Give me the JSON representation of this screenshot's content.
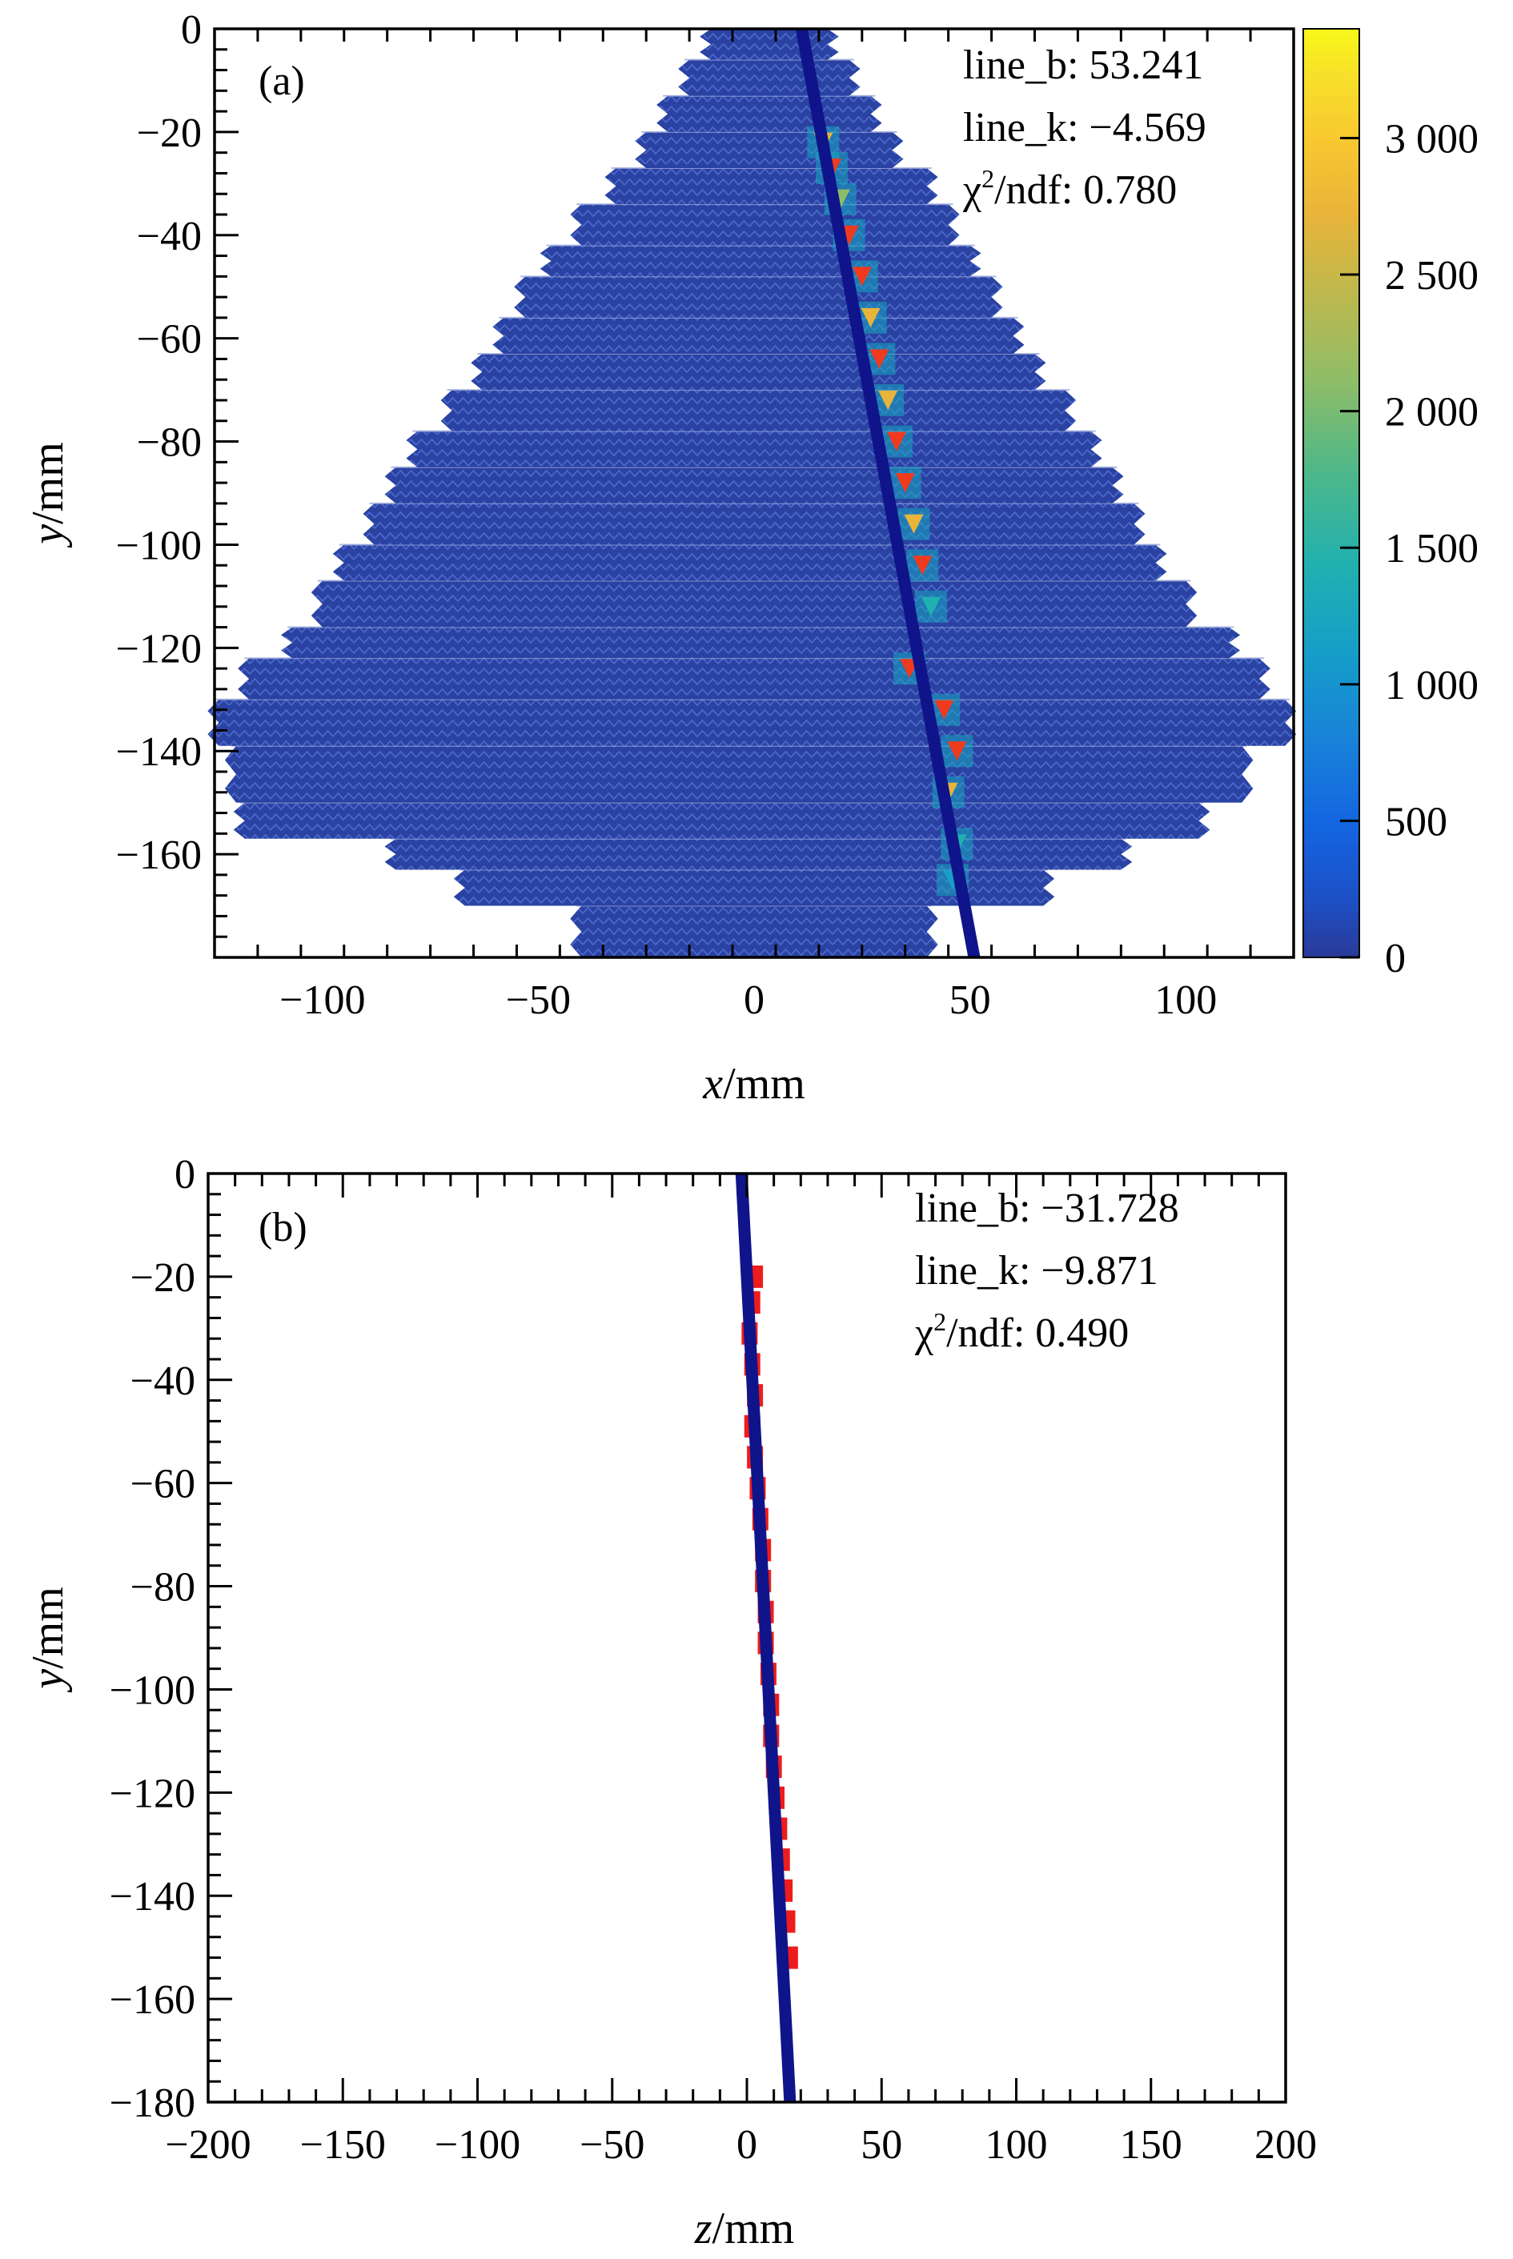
{
  "chart_data": [
    {
      "panel": "(a)",
      "type": "heatmap",
      "xlabel_var": "x",
      "xlabel_unit": "/mm",
      "ylabel_var": "y",
      "ylabel_unit": "/mm",
      "xlim": [
        -125,
        125
      ],
      "ylim": [
        -180,
        0
      ],
      "xticks": [
        -100,
        -50,
        0,
        50,
        100
      ],
      "xtick_labels": [
        "−100",
        "−50",
        "0",
        "50",
        "100"
      ],
      "yticks": [
        0,
        -20,
        -40,
        -60,
        -80,
        -100,
        -120,
        -140,
        -160
      ],
      "ytick_labels": [
        "0",
        "−20",
        "−40",
        "−60",
        "−80",
        "−100",
        "−120",
        "−140",
        "−160"
      ],
      "colorbar": {
        "range": [
          0,
          3400
        ],
        "ticks": [
          0,
          500,
          1000,
          1500,
          2000,
          2500,
          3000
        ],
        "tick_labels": [
          "0",
          "500",
          "1 000",
          "1 500",
          "2 000",
          "2 500",
          "3 000"
        ]
      },
      "detector_region": [
        {
          "y": [
            -180,
            -170
          ],
          "x": [
            -40,
            40
          ]
        },
        {
          "y": [
            -170,
            -163
          ],
          "x": [
            -67,
            67
          ]
        },
        {
          "y": [
            -163,
            -157
          ],
          "x": [
            -83,
            85
          ]
        },
        {
          "y": [
            -157,
            -150
          ],
          "x": [
            -118,
            103
          ]
        },
        {
          "y": [
            -150,
            -139
          ],
          "x": [
            -120,
            113
          ]
        },
        {
          "y": [
            -139,
            -130
          ],
          "x": [
            -124,
            123
          ]
        },
        {
          "y": [
            -130,
            -122
          ],
          "x": [
            -117,
            117
          ]
        },
        {
          "y": [
            -122,
            -116
          ],
          "x": [
            -107,
            110
          ]
        },
        {
          "y": [
            -116,
            -107
          ],
          "x": [
            -100,
            100
          ]
        },
        {
          "y": [
            -107,
            -100
          ],
          "x": [
            -95,
            93
          ]
        },
        {
          "y": [
            -100,
            -92
          ],
          "x": [
            -88,
            88
          ]
        },
        {
          "y": [
            -92,
            -85
          ],
          "x": [
            -83,
            83
          ]
        },
        {
          "y": [
            -85,
            -78
          ],
          "x": [
            -78,
            78
          ]
        },
        {
          "y": [
            -78,
            -70
          ],
          "x": [
            -70,
            72
          ]
        },
        {
          "y": [
            -70,
            -63
          ],
          "x": [
            -63,
            65
          ]
        },
        {
          "y": [
            -63,
            -56
          ],
          "x": [
            -58,
            60
          ]
        },
        {
          "y": [
            -56,
            -48
          ],
          "x": [
            -53,
            55
          ]
        },
        {
          "y": [
            -48,
            -42
          ],
          "x": [
            -47,
            50
          ]
        },
        {
          "y": [
            -42,
            -34
          ],
          "x": [
            -40,
            45
          ]
        },
        {
          "y": [
            -34,
            -27
          ],
          "x": [
            -32,
            40
          ]
        },
        {
          "y": [
            -27,
            -20
          ],
          "x": [
            -25,
            32
          ]
        },
        {
          "y": [
            -20,
            -13
          ],
          "x": [
            -20,
            27
          ]
        },
        {
          "y": [
            -13,
            -6
          ],
          "x": [
            -15,
            22
          ]
        },
        {
          "y": [
            -6,
            0
          ],
          "x": [
            -10,
            17
          ]
        }
      ],
      "hits": [
        {
          "x": 16,
          "y": -22,
          "value": 2600
        },
        {
          "x": 18,
          "y": -27,
          "value": 3200
        },
        {
          "x": 20,
          "y": -33,
          "value": 2300
        },
        {
          "x": 22,
          "y": -40,
          "value": 3300
        },
        {
          "x": 25,
          "y": -48,
          "value": 3300
        },
        {
          "x": 27,
          "y": -56,
          "value": 2800
        },
        {
          "x": 29,
          "y": -64,
          "value": 3300
        },
        {
          "x": 31,
          "y": -72,
          "value": 2600
        },
        {
          "x": 33,
          "y": -80,
          "value": 3300
        },
        {
          "x": 35,
          "y": -88,
          "value": 3200
        },
        {
          "x": 37,
          "y": -96,
          "value": 2800
        },
        {
          "x": 39,
          "y": -104,
          "value": 3300
        },
        {
          "x": 41,
          "y": -112,
          "value": 1600
        },
        {
          "x": 36,
          "y": -124,
          "value": 3300
        },
        {
          "x": 44,
          "y": -132,
          "value": 3300
        },
        {
          "x": 47,
          "y": -140,
          "value": 3300
        },
        {
          "x": 45,
          "y": -148,
          "value": 2600
        },
        {
          "x": 47,
          "y": -158,
          "value": 1800
        },
        {
          "x": 46,
          "y": -165,
          "value": 1200
        }
      ],
      "fit_line": {
        "x1": 11,
        "y1": 0,
        "x2": 51,
        "y2": -180
      },
      "stats": {
        "line_b": "line_b: 53.241",
        "line_k": "line_k: −4.569",
        "chi2_ndf_prefix": "χ",
        "chi2_ndf_sup": "2",
        "chi2_ndf_suffix": "/ndf: 0.780"
      }
    },
    {
      "panel": "(b)",
      "type": "scatter",
      "xlabel_var": "z",
      "xlabel_unit": "/mm",
      "ylabel_var": "y",
      "ylabel_unit": "/mm",
      "xlim": [
        -200,
        200
      ],
      "ylim": [
        -180,
        0
      ],
      "xticks": [
        -200,
        -150,
        -100,
        -50,
        0,
        50,
        100,
        150,
        200
      ],
      "xtick_labels": [
        "−200",
        "−150",
        "−100",
        "−50",
        "0",
        "50",
        "100",
        "150",
        "200"
      ],
      "yticks": [
        0,
        -20,
        -40,
        -60,
        -80,
        -100,
        -120,
        -140,
        -160,
        -180
      ],
      "ytick_labels": [
        "0",
        "−20",
        "−40",
        "−60",
        "−80",
        "−100",
        "−120",
        "−140",
        "−160",
        "−180"
      ],
      "hits": [
        {
          "z": 3,
          "y": -20
        },
        {
          "z": 2,
          "y": -25
        },
        {
          "z": 1,
          "y": -31
        },
        {
          "z": 2,
          "y": -37
        },
        {
          "z": 3,
          "y": -43
        },
        {
          "z": 2,
          "y": -49
        },
        {
          "z": 3,
          "y": -55
        },
        {
          "z": 4,
          "y": -61
        },
        {
          "z": 5,
          "y": -67
        },
        {
          "z": 6,
          "y": -73
        },
        {
          "z": 6,
          "y": -79
        },
        {
          "z": 7,
          "y": -85
        },
        {
          "z": 7,
          "y": -91
        },
        {
          "z": 8,
          "y": -97
        },
        {
          "z": 9,
          "y": -103
        },
        {
          "z": 9,
          "y": -109
        },
        {
          "z": 10,
          "y": -115
        },
        {
          "z": 11,
          "y": -121
        },
        {
          "z": 12,
          "y": -127
        },
        {
          "z": 13,
          "y": -133
        },
        {
          "z": 14,
          "y": -139
        },
        {
          "z": 15,
          "y": -145
        },
        {
          "z": 16,
          "y": -152
        }
      ],
      "fit_line": {
        "x1": -2,
        "y1": 0,
        "x2": 16,
        "y2": -180
      },
      "stats": {
        "line_b": "line_b: −31.728",
        "line_k": "line_k: −9.871",
        "chi2_ndf_prefix": "χ",
        "chi2_ndf_sup": "2",
        "chi2_ndf_suffix": "/ndf: 0.490"
      }
    }
  ]
}
